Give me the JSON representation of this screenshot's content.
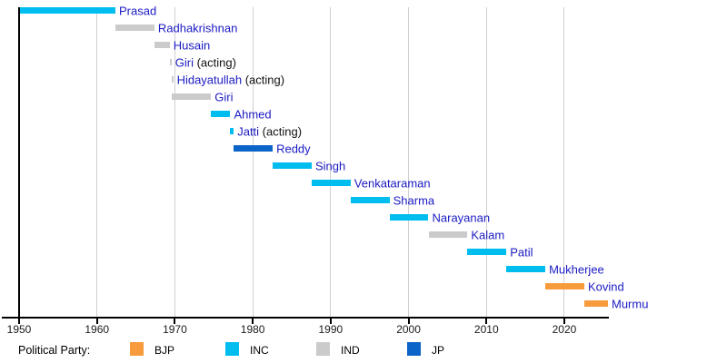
{
  "chart_data": {
    "type": "bar",
    "variant": "horizontal-timeline",
    "title": "",
    "xlabel": "",
    "ylabel": "",
    "xlim": [
      1947.8,
      2025.7
    ],
    "x_ticks": [
      1950,
      1960,
      1970,
      1980,
      1990,
      2000,
      2010,
      2020
    ],
    "grid": "vertical-decade-lines",
    "acting_suffix": " (acting)",
    "presidents": [
      {
        "name": "Prasad",
        "acting": false,
        "party": "INC",
        "start": 1950.07,
        "end": 1962.37
      },
      {
        "name": "Radhakrishnan",
        "acting": false,
        "party": "IND",
        "start": 1962.37,
        "end": 1967.37
      },
      {
        "name": "Husain",
        "acting": false,
        "party": "IND",
        "start": 1967.37,
        "end": 1969.34
      },
      {
        "name": "Giri",
        "acting": true,
        "party": "IND",
        "start": 1969.34,
        "end": 1969.55
      },
      {
        "name": "Hidayatullah",
        "acting": true,
        "party": "IND",
        "start": 1969.55,
        "end": 1969.65
      },
      {
        "name": "Giri",
        "acting": false,
        "party": "IND",
        "start": 1969.65,
        "end": 1974.65
      },
      {
        "name": "Ahmed",
        "acting": false,
        "party": "INC",
        "start": 1974.65,
        "end": 1977.12
      },
      {
        "name": "Jatti",
        "acting": true,
        "party": "INC",
        "start": 1977.12,
        "end": 1977.56
      },
      {
        "name": "Reddy",
        "acting": false,
        "party": "JP",
        "start": 1977.56,
        "end": 1982.56
      },
      {
        "name": "Singh",
        "acting": false,
        "party": "INC",
        "start": 1982.56,
        "end": 1987.56
      },
      {
        "name": "Venkataraman",
        "acting": false,
        "party": "INC",
        "start": 1987.56,
        "end": 1992.56
      },
      {
        "name": "Sharma",
        "acting": false,
        "party": "INC",
        "start": 1992.56,
        "end": 1997.56
      },
      {
        "name": "Narayanan",
        "acting": false,
        "party": "INC",
        "start": 1997.56,
        "end": 2002.56
      },
      {
        "name": "Kalam",
        "acting": false,
        "party": "IND",
        "start": 2002.56,
        "end": 2007.56
      },
      {
        "name": "Patil",
        "acting": false,
        "party": "INC",
        "start": 2007.56,
        "end": 2012.56
      },
      {
        "name": "Mukherjee",
        "acting": false,
        "party": "INC",
        "start": 2012.56,
        "end": 2017.56
      },
      {
        "name": "Kovind",
        "acting": false,
        "party": "BJP",
        "start": 2017.56,
        "end": 2022.56
      },
      {
        "name": "Murmu",
        "acting": false,
        "party": "BJP",
        "start": 2022.56,
        "end": 2025.6
      }
    ],
    "legend": {
      "label": "Political Party:",
      "position": "bottom",
      "entries": [
        {
          "label": "BJP",
          "color": "#f79b3d"
        },
        {
          "label": "INC",
          "color": "#00bdf0"
        },
        {
          "label": "IND",
          "color": "#cbcbcb"
        },
        {
          "label": "JP",
          "color": "#0d64c8"
        }
      ]
    }
  },
  "colors": {
    "name_link_text": "#1a1ac2",
    "acting_suffix_text": "#111111",
    "axis": "#000000",
    "gridline": "#cfcfcf",
    "tick_label_text": "#1a1a1a",
    "background": "#ffffff"
  }
}
